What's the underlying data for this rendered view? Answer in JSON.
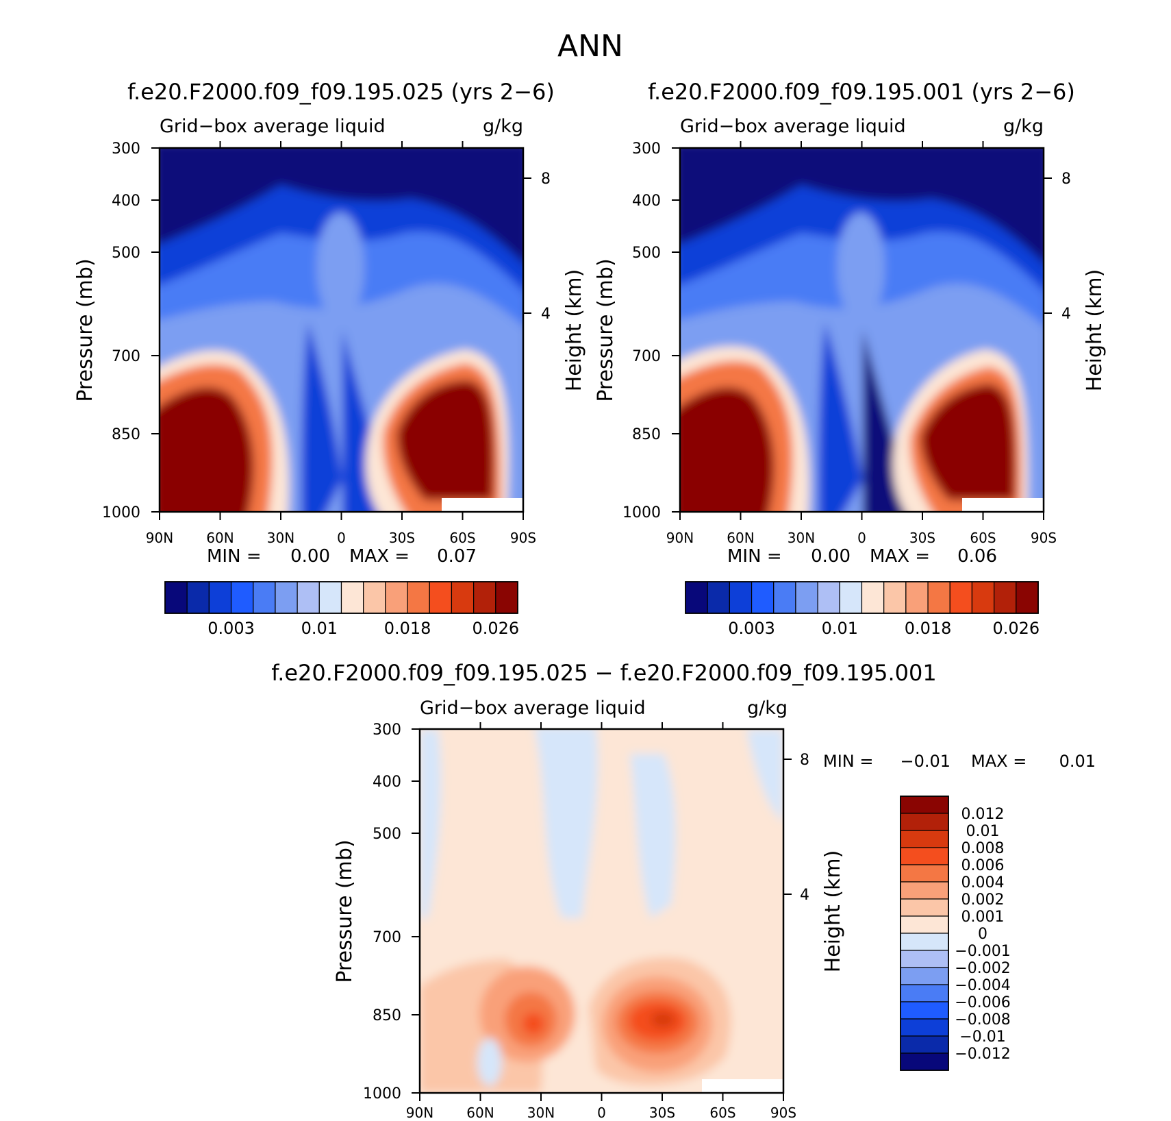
{
  "page_title": "ANN",
  "chart_data": [
    {
      "type": "heatmap",
      "title": "f.e20.F2000.f09_f09.195.025 (yrs 2−6)",
      "subtitle_left": "Grid−box average liquid",
      "subtitle_right": "g/kg",
      "ylabel": "Pressure (mb)",
      "ylabel_right": "Height (km)",
      "y_ticks": [
        "300",
        "400",
        "500",
        "700",
        "850",
        "1000"
      ],
      "y_ticks_right": [
        "8",
        "4"
      ],
      "x_ticks": [
        "90N",
        "60N",
        "30N",
        "0",
        "30S",
        "60S",
        "90S"
      ],
      "x_range": [
        90,
        -90
      ],
      "y_range": [
        300,
        1000
      ],
      "y_scale": "log",
      "min_label": "MIN =",
      "min_value": "0.00",
      "max_label": "MAX =",
      "max_value": "0.07",
      "colorbar": {
        "orientation": "horizontal",
        "colors": [
          "#08087a",
          "#0a2aaa",
          "#0d3fd8",
          "#1f5cff",
          "#4a7cf5",
          "#7c9ef2",
          "#aebff5",
          "#d6e6fa",
          "#fde6d6",
          "#fbc6a8",
          "#f9a079",
          "#f47744",
          "#f44e1e",
          "#d83a0f",
          "#b22109",
          "#8a0502"
        ],
        "labels": [
          "0.003",
          "0.01",
          "0.018",
          "0.026"
        ]
      }
    },
    {
      "type": "heatmap",
      "title": "f.e20.F2000.f09_f09.195.001 (yrs 2−6)",
      "subtitle_left": "Grid−box average liquid",
      "subtitle_right": "g/kg",
      "ylabel": "Pressure (mb)",
      "ylabel_right": "Height (km)",
      "y_ticks": [
        "300",
        "400",
        "500",
        "700",
        "850",
        "1000"
      ],
      "y_ticks_right": [
        "8",
        "4"
      ],
      "x_ticks": [
        "90N",
        "60N",
        "30N",
        "0",
        "30S",
        "60S",
        "90S"
      ],
      "x_range": [
        90,
        -90
      ],
      "y_range": [
        300,
        1000
      ],
      "y_scale": "log",
      "min_label": "MIN =",
      "min_value": "0.00",
      "max_label": "MAX =",
      "max_value": "0.06",
      "colorbar": {
        "orientation": "horizontal",
        "colors": [
          "#08087a",
          "#0a2aaa",
          "#0d3fd8",
          "#1f5cff",
          "#4a7cf5",
          "#7c9ef2",
          "#aebff5",
          "#d6e6fa",
          "#fde6d6",
          "#fbc6a8",
          "#f9a079",
          "#f47744",
          "#f44e1e",
          "#d83a0f",
          "#b22109",
          "#8a0502"
        ],
        "labels": [
          "0.003",
          "0.01",
          "0.018",
          "0.026"
        ]
      }
    },
    {
      "type": "heatmap",
      "title": "f.e20.F2000.f09_f09.195.025 − f.e20.F2000.f09_f09.195.001",
      "subtitle_left": "Grid−box average liquid",
      "subtitle_right": "g/kg",
      "ylabel": "Pressure (mb)",
      "ylabel_right": "Height (km)",
      "y_ticks": [
        "300",
        "400",
        "500",
        "700",
        "850",
        "1000"
      ],
      "y_ticks_right": [
        "8",
        "4"
      ],
      "x_ticks": [
        "90N",
        "60N",
        "30N",
        "0",
        "30S",
        "60S",
        "90S"
      ],
      "x_range": [
        90,
        -90
      ],
      "y_range": [
        300,
        1000
      ],
      "y_scale": "log",
      "min_label": "MIN =",
      "min_value": "−0.01",
      "max_label": "MAX =",
      "max_value": "0.01",
      "colorbar": {
        "orientation": "vertical",
        "colors": [
          "#8a0502",
          "#b22109",
          "#d83a0f",
          "#f44e1e",
          "#f47744",
          "#f9a079",
          "#fbc6a8",
          "#fde6d6",
          "#d6e6fa",
          "#aebff5",
          "#7c9ef2",
          "#4a7cf5",
          "#1f5cff",
          "#0d3fd8",
          "#0a2aaa",
          "#08087a"
        ],
        "labels": [
          "0.012",
          "0.01",
          "0.008",
          "0.006",
          "0.004",
          "0.002",
          "0.001",
          "0",
          "−0.001",
          "−0.002",
          "−0.004",
          "−0.006",
          "−0.008",
          "−0.01",
          "−0.012"
        ]
      }
    }
  ]
}
